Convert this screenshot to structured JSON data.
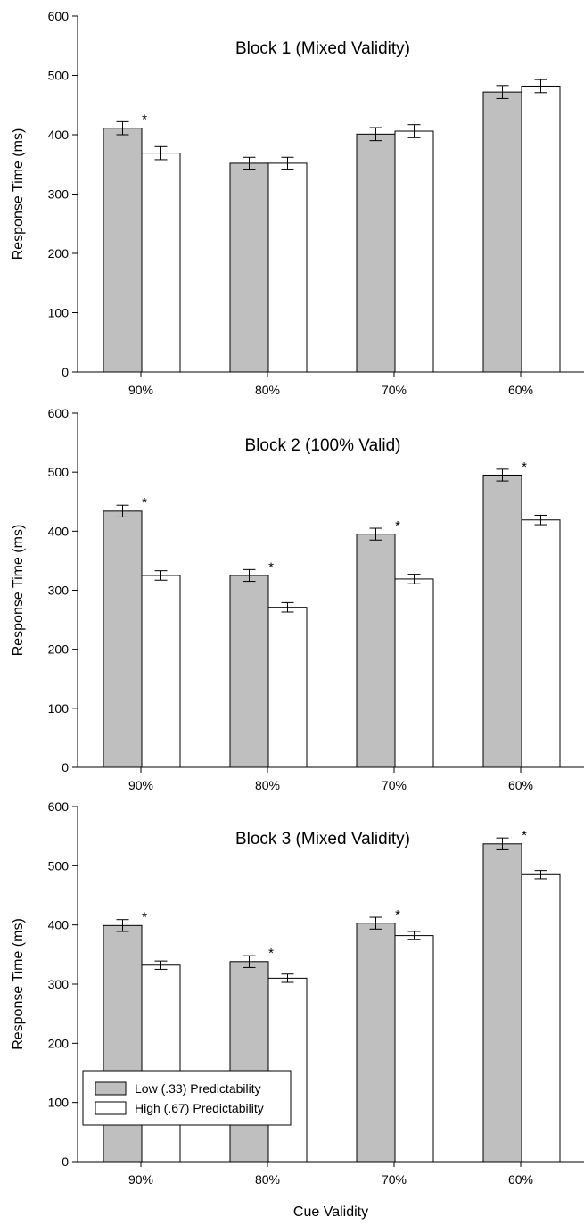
{
  "figure": {
    "x_label": "Cue Validity",
    "legend": {
      "placement": "bottom-left",
      "entries": [
        {
          "label": "Low (.33) Predictability",
          "color": "#bfbfbf"
        },
        {
          "label": "High (.67) Predictability",
          "color": "#ffffff"
        }
      ]
    }
  },
  "chart_data": [
    {
      "type": "bar",
      "title": "Block 1 (Mixed Validity)",
      "xlabel": "",
      "ylabel": "Response Time (ms)",
      "ylim": [
        0,
        600
      ],
      "yticks": [
        0,
        100,
        200,
        300,
        400,
        500,
        600
      ],
      "categories": [
        "90%",
        "80%",
        "70%",
        "60%"
      ],
      "series": [
        {
          "name": "Low (.33) Predictability",
          "color": "#bfbfbf",
          "values": [
            411,
            352,
            401,
            472
          ],
          "errors": [
            11,
            10,
            11,
            11
          ]
        },
        {
          "name": "High (.67) Predictability",
          "color": "#ffffff",
          "values": [
            369,
            352,
            406,
            482
          ],
          "errors": [
            11,
            10,
            11,
            11
          ]
        }
      ],
      "significance": [
        "*",
        "",
        "",
        ""
      ],
      "grid": false,
      "legend": false
    },
    {
      "type": "bar",
      "title": "Block 2 (100% Valid)",
      "xlabel": "",
      "ylabel": "Response Time (ms)",
      "ylim": [
        0,
        600
      ],
      "yticks": [
        0,
        100,
        200,
        300,
        400,
        500,
        600
      ],
      "categories": [
        "90%",
        "80%",
        "70%",
        "60%"
      ],
      "series": [
        {
          "name": "Low (.33) Predictability",
          "color": "#bfbfbf",
          "values": [
            434,
            325,
            395,
            495
          ],
          "errors": [
            10,
            10,
            10,
            10
          ]
        },
        {
          "name": "High (.67) Predictability",
          "color": "#ffffff",
          "values": [
            325,
            271,
            319,
            419
          ],
          "errors": [
            8,
            8,
            8,
            8
          ]
        }
      ],
      "significance": [
        "*",
        "*",
        "*",
        "*"
      ],
      "grid": false,
      "legend": false
    },
    {
      "type": "bar",
      "title": "Block 3 (Mixed Validity)",
      "xlabel": "",
      "ylabel": "Response Time (ms)",
      "ylim": [
        0,
        600
      ],
      "yticks": [
        0,
        100,
        200,
        300,
        400,
        500,
        600
      ],
      "categories": [
        "90%",
        "80%",
        "70%",
        "60%"
      ],
      "series": [
        {
          "name": "Low (.33) Predictability",
          "color": "#bfbfbf",
          "values": [
            399,
            338,
            403,
            537
          ],
          "errors": [
            10,
            10,
            10,
            10
          ]
        },
        {
          "name": "High (.67) Predictability",
          "color": "#ffffff",
          "values": [
            332,
            310,
            382,
            485
          ],
          "errors": [
            7,
            7,
            7,
            7
          ]
        }
      ],
      "significance": [
        "*",
        "*",
        "*",
        "*"
      ],
      "grid": false,
      "legend": true
    }
  ]
}
